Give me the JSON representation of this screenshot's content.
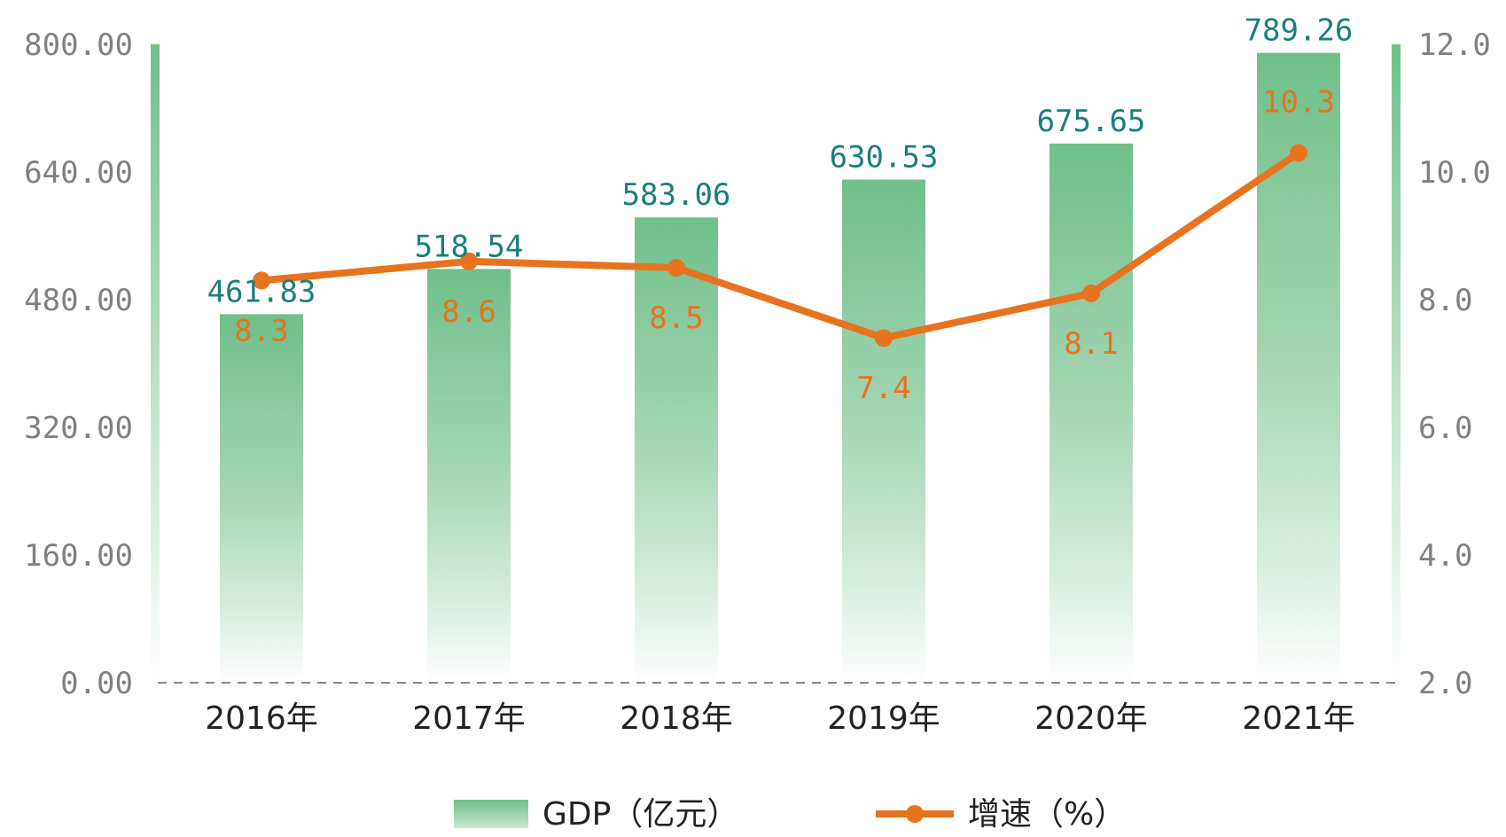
{
  "chart_data": {
    "type": "bar",
    "categories": [
      "2016年",
      "2017年",
      "2018年",
      "2019年",
      "2020年",
      "2021年"
    ],
    "series": [
      {
        "name": "GDP（亿元）",
        "type": "bar",
        "axis": "left",
        "values": [
          461.83,
          518.54,
          583.06,
          630.53,
          675.65,
          789.26
        ],
        "labels": [
          "461.83",
          "518.54",
          "583.06",
          "630.53",
          "675.65",
          "789.26"
        ],
        "color": "#6fbf8a"
      },
      {
        "name": "增速（%）",
        "type": "line",
        "axis": "right",
        "values": [
          8.3,
          8.6,
          8.5,
          7.4,
          8.1,
          10.3
        ],
        "labels": [
          "8.3",
          "8.6",
          "8.5",
          "7.4",
          "8.1",
          "10.3"
        ],
        "color": "#e8731f"
      }
    ],
    "y_left": {
      "ylim": [
        0,
        800
      ],
      "ticks": [
        "0.00",
        "160.00",
        "320.00",
        "480.00",
        "640.00",
        "800.00"
      ]
    },
    "y_right": {
      "ylim": [
        2,
        12
      ],
      "ticks": [
        "2.0",
        "4.0",
        "6.0",
        "8.0",
        "10.0",
        "12.0"
      ]
    },
    "grid": false,
    "legend_position": "bottom-center",
    "colors": {
      "bar": "#6fbf8a",
      "line": "#e8731f",
      "bar_label": "#1a7f7a",
      "line_label": "#e8731f",
      "axis_text": "#808080",
      "baseline": "#888888"
    }
  }
}
